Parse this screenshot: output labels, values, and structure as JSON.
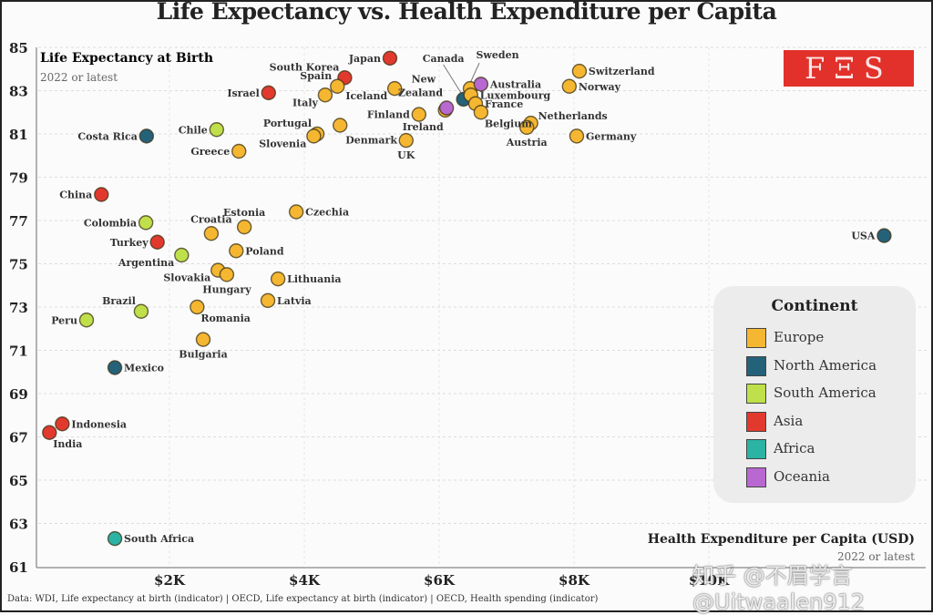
{
  "title": "Life Expectancy vs. Health Expenditure per Capita",
  "logo_text": "FΞS",
  "source": "Data: WDI, Life expectancy at birth (indicator) | OECD, Life expectancy at birth (indicator) | OECD, Health spending (indicator)",
  "watermark": "知乎 @不眉学言  @Uitwaalen912",
  "legend": {
    "title": "Continent",
    "items": [
      {
        "label": "Europe",
        "color": "#f5b731"
      },
      {
        "label": "North America",
        "color": "#24627a"
      },
      {
        "label": "South America",
        "color": "#bfe04a"
      },
      {
        "label": "Asia",
        "color": "#e2392f"
      },
      {
        "label": "Africa",
        "color": "#2bb3a3"
      },
      {
        "label": "Oceania",
        "color": "#b868d0"
      }
    ]
  },
  "chart_data": {
    "type": "scatter",
    "title": "Life Expectancy vs. Health Expenditure per Capita",
    "ylabel": "Life Expectancy at Birth",
    "ylabel_sub": "2022 or latest",
    "xlabel": "Health Expenditure per Capita (USD)",
    "xlabel_sub": "2022 or latest",
    "ylim": [
      61,
      85
    ],
    "xlim": [
      0,
      13300
    ],
    "yticks": [
      61,
      63,
      65,
      67,
      69,
      71,
      73,
      75,
      77,
      79,
      81,
      83,
      85
    ],
    "xticks": [
      {
        "value": 2000,
        "label": "$2K"
      },
      {
        "value": 4000,
        "label": "$4K"
      },
      {
        "value": 6000,
        "label": "$6K"
      },
      {
        "value": 8000,
        "label": "$8K"
      },
      {
        "value": 10000,
        "label": "$10K"
      }
    ],
    "grid": true,
    "legend_position": "right",
    "points": [
      {
        "name": "Japan",
        "continent": "Asia",
        "x": 5270,
        "y": 84.5,
        "label_pos": "left"
      },
      {
        "name": "South Korea",
        "continent": "Asia",
        "x": 4600,
        "y": 83.6,
        "label_pos": "topleft"
      },
      {
        "name": "Spain",
        "continent": "Europe",
        "x": 4490,
        "y": 83.2,
        "label_pos": "topleft"
      },
      {
        "name": "Italy",
        "continent": "Europe",
        "x": 4310,
        "y": 82.8,
        "label_pos": "bottomleft"
      },
      {
        "name": "Israel",
        "continent": "Asia",
        "x": 3470,
        "y": 82.9,
        "label_pos": "left"
      },
      {
        "name": "Iceland",
        "continent": "Europe",
        "x": 5340,
        "y": 83.1,
        "label_pos": "bottomleft"
      },
      {
        "name": "Portugal",
        "continent": "Europe",
        "x": 4190,
        "y": 81.0,
        "label_pos": "topleft"
      },
      {
        "name": "Slovenia",
        "continent": "Europe",
        "x": 4140,
        "y": 80.9,
        "label_pos": "bottomleft"
      },
      {
        "name": "Denmark",
        "continent": "Europe",
        "x": 4530,
        "y": 81.4,
        "label_pos": "bottomright"
      },
      {
        "name": "Finland",
        "continent": "Europe",
        "x": 5700,
        "y": 81.9,
        "label_pos": "left"
      },
      {
        "name": "UK",
        "continent": "Europe",
        "x": 5510,
        "y": 80.7,
        "label_pos": "below"
      },
      {
        "name": "Ireland",
        "continent": "Europe",
        "x": 6090,
        "y": 82.1,
        "label_pos": "belowleft"
      },
      {
        "name": "New Zealand",
        "continent": "Oceania",
        "x": 6110,
        "y": 82.2,
        "label_pos": "topleft2"
      },
      {
        "name": "Canada",
        "continent": "North America",
        "x": 6360,
        "y": 82.6,
        "label_pos": "leader-canada"
      },
      {
        "name": "Sweden",
        "continent": "Europe",
        "x": 6460,
        "y": 83.1,
        "label_pos": "leader-sweden"
      },
      {
        "name": "Australia",
        "continent": "Oceania",
        "x": 6620,
        "y": 83.3,
        "label_pos": "right"
      },
      {
        "name": "Luxembourg",
        "continent": "Europe",
        "x": 6470,
        "y": 82.8,
        "label_pos": "right"
      },
      {
        "name": "France",
        "continent": "Europe",
        "x": 6540,
        "y": 82.4,
        "label_pos": "right"
      },
      {
        "name": "Belgium",
        "continent": "Europe",
        "x": 6620,
        "y": 82.0,
        "label_pos": "belowright"
      },
      {
        "name": "Netherlands",
        "continent": "Europe",
        "x": 7360,
        "y": 81.5,
        "label_pos": "topright"
      },
      {
        "name": "Austria",
        "continent": "Europe",
        "x": 7300,
        "y": 81.3,
        "label_pos": "below"
      },
      {
        "name": "Switzerland",
        "continent": "Europe",
        "x": 8080,
        "y": 83.9,
        "label_pos": "right"
      },
      {
        "name": "Norway",
        "continent": "Europe",
        "x": 7930,
        "y": 83.2,
        "label_pos": "right"
      },
      {
        "name": "Germany",
        "continent": "Europe",
        "x": 8040,
        "y": 80.9,
        "label_pos": "right"
      },
      {
        "name": "Costa Rica",
        "continent": "North America",
        "x": 1660,
        "y": 80.9,
        "label_pos": "left"
      },
      {
        "name": "Chile",
        "continent": "South America",
        "x": 2700,
        "y": 81.2,
        "label_pos": "left"
      },
      {
        "name": "Greece",
        "continent": "Europe",
        "x": 3030,
        "y": 80.2,
        "label_pos": "left"
      },
      {
        "name": "China",
        "continent": "Asia",
        "x": 990,
        "y": 78.2,
        "label_pos": "left"
      },
      {
        "name": "Colombia",
        "continent": "South America",
        "x": 1650,
        "y": 76.9,
        "label_pos": "left"
      },
      {
        "name": "Turkey",
        "continent": "Asia",
        "x": 1820,
        "y": 76.0,
        "label_pos": "left"
      },
      {
        "name": "Argentina",
        "continent": "South America",
        "x": 2180,
        "y": 75.4,
        "label_pos": "bottomleft"
      },
      {
        "name": "Croatia",
        "continent": "Europe",
        "x": 2620,
        "y": 76.4,
        "label_pos": "top"
      },
      {
        "name": "Estonia",
        "continent": "Europe",
        "x": 3110,
        "y": 76.7,
        "label_pos": "top"
      },
      {
        "name": "Czechia",
        "continent": "Europe",
        "x": 3880,
        "y": 77.4,
        "label_pos": "right"
      },
      {
        "name": "Poland",
        "continent": "Europe",
        "x": 2990,
        "y": 75.6,
        "label_pos": "right"
      },
      {
        "name": "Slovakia",
        "continent": "Europe",
        "x": 2720,
        "y": 74.7,
        "label_pos": "bottomleft"
      },
      {
        "name": "Hungary",
        "continent": "Europe",
        "x": 2850,
        "y": 74.5,
        "label_pos": "below"
      },
      {
        "name": "Lithuania",
        "continent": "Europe",
        "x": 3610,
        "y": 74.3,
        "label_pos": "right"
      },
      {
        "name": "Latvia",
        "continent": "Europe",
        "x": 3460,
        "y": 73.3,
        "label_pos": "right"
      },
      {
        "name": "Romania",
        "continent": "Europe",
        "x": 2410,
        "y": 73.0,
        "label_pos": "belowright"
      },
      {
        "name": "Bulgaria",
        "continent": "Europe",
        "x": 2500,
        "y": 71.5,
        "label_pos": "below"
      },
      {
        "name": "Brazil",
        "continent": "South America",
        "x": 1580,
        "y": 72.8,
        "label_pos": "topleft"
      },
      {
        "name": "Peru",
        "continent": "South America",
        "x": 770,
        "y": 72.4,
        "label_pos": "left"
      },
      {
        "name": "Mexico",
        "continent": "North America",
        "x": 1190,
        "y": 70.2,
        "label_pos": "right"
      },
      {
        "name": "Indonesia",
        "continent": "Asia",
        "x": 410,
        "y": 67.6,
        "label_pos": "right"
      },
      {
        "name": "India",
        "continent": "Asia",
        "x": 220,
        "y": 67.2,
        "label_pos": "belowright"
      },
      {
        "name": "South Africa",
        "continent": "Africa",
        "x": 1190,
        "y": 62.3,
        "label_pos": "right"
      },
      {
        "name": "USA",
        "continent": "North America",
        "x": 12600,
        "y": 76.3,
        "label_pos": "left"
      }
    ]
  }
}
